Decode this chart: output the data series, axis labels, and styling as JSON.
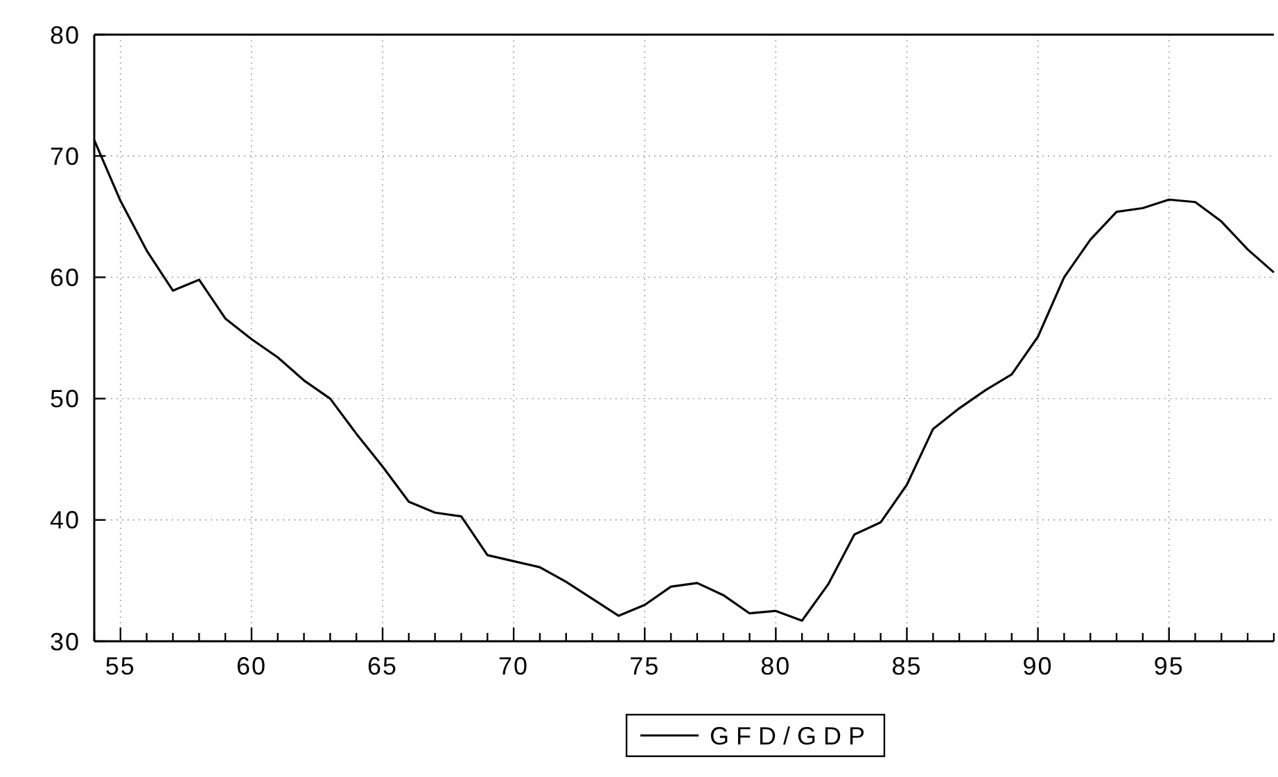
{
  "chart_data": {
    "type": "line",
    "x": [
      54,
      55,
      56,
      57,
      58,
      59,
      60,
      61,
      62,
      63,
      64,
      65,
      66,
      67,
      68,
      69,
      70,
      71,
      72,
      73,
      74,
      75,
      76,
      77,
      78,
      79,
      80,
      81,
      82,
      83,
      84,
      85,
      86,
      87,
      88,
      89,
      90,
      91,
      92,
      93,
      94,
      95,
      96,
      97,
      98,
      99
    ],
    "series": [
      {
        "name": "GFD/GDP",
        "color": "#000000",
        "values": [
          71.3,
          66.3,
          62.2,
          58.9,
          59.8,
          56.6,
          54.9,
          53.4,
          51.5,
          50.0,
          47.1,
          44.4,
          41.5,
          40.6,
          40.3,
          37.1,
          36.6,
          36.1,
          34.9,
          33.5,
          32.1,
          33.0,
          34.5,
          34.8,
          33.8,
          32.3,
          32.5,
          31.7,
          34.7,
          38.8,
          39.8,
          42.9,
          47.5,
          49.2,
          50.7,
          52.0,
          55.1,
          60.0,
          63.1,
          65.4,
          65.7,
          66.4,
          66.2,
          64.6,
          62.3,
          60.4
        ]
      }
    ],
    "xlim": [
      54,
      99
    ],
    "ylim": [
      30,
      80
    ],
    "yticks": [
      30,
      40,
      50,
      60,
      70,
      80
    ],
    "xticks": [
      {
        "value": 54,
        "label": null
      },
      55,
      {
        "value": 56,
        "label": null
      },
      {
        "value": 57,
        "label": null
      },
      {
        "value": 58,
        "label": null
      },
      {
        "value": 59,
        "label": null
      },
      60,
      {
        "value": 61,
        "label": null
      },
      {
        "value": 62,
        "label": null
      },
      {
        "value": 63,
        "label": null
      },
      {
        "value": 64,
        "label": null
      },
      65,
      {
        "value": 66,
        "label": null
      },
      {
        "value": 67,
        "label": null
      },
      {
        "value": 68,
        "label": null
      },
      {
        "value": 69,
        "label": null
      },
      70,
      {
        "value": 71,
        "label": null
      },
      {
        "value": 72,
        "label": null
      },
      {
        "value": 73,
        "label": null
      },
      {
        "value": 74,
        "label": null
      },
      75,
      {
        "value": 76,
        "label": null
      },
      {
        "value": 77,
        "label": null
      },
      {
        "value": 78,
        "label": null
      },
      {
        "value": 79,
        "label": null
      },
      80,
      {
        "value": 81,
        "label": null
      },
      {
        "value": 82,
        "label": null
      },
      {
        "value": 83,
        "label": null
      },
      {
        "value": 84,
        "label": null
      },
      85,
      {
        "value": 86,
        "label": null
      },
      {
        "value": 87,
        "label": null
      },
      {
        "value": 88,
        "label": null
      },
      {
        "value": 89,
        "label": null
      },
      90,
      {
        "value": 91,
        "label": null
      },
      {
        "value": 92,
        "label": null
      },
      {
        "value": 93,
        "label": null
      },
      {
        "value": 94,
        "label": null
      },
      95,
      {
        "value": 96,
        "label": null
      },
      {
        "value": 97,
        "label": null
      },
      {
        "value": 98,
        "label": null
      },
      {
        "value": 99,
        "label": null
      }
    ],
    "grid": true,
    "legend": "bottom",
    "line_style": "solid"
  }
}
